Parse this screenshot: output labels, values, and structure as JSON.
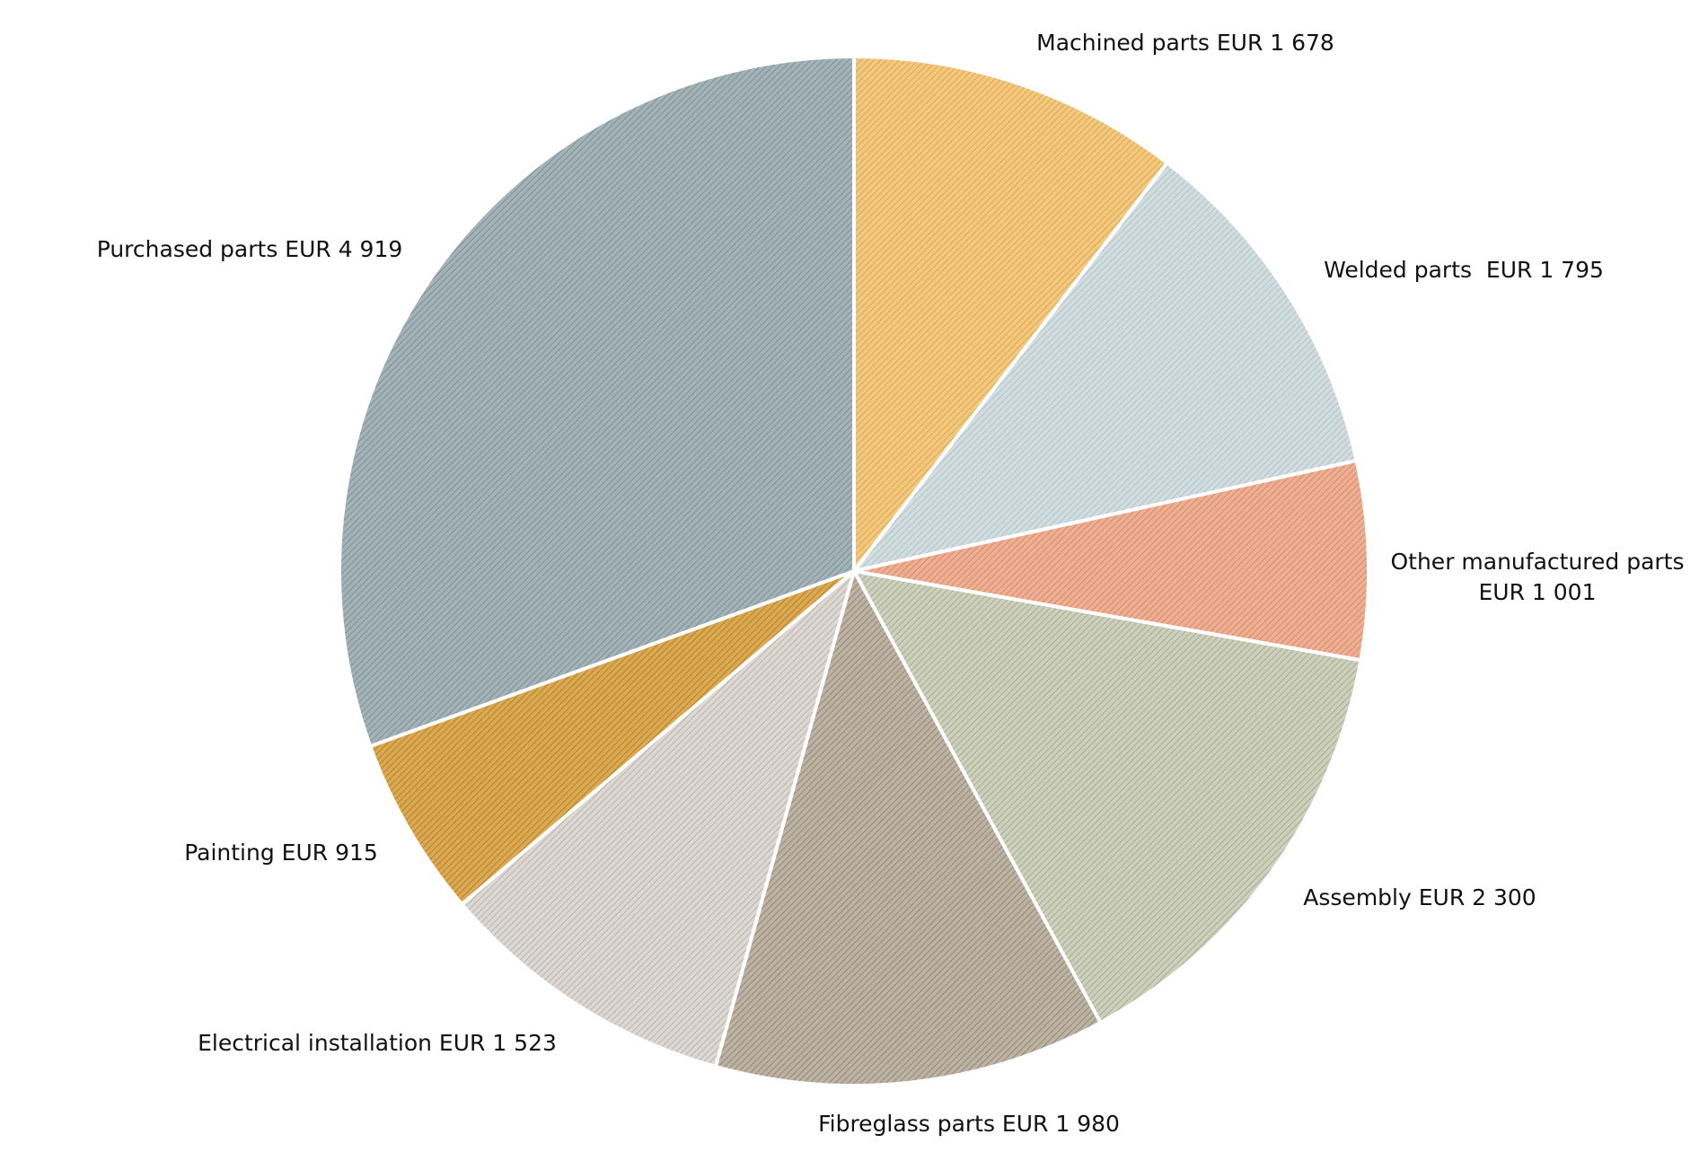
{
  "chart_data": {
    "type": "pie",
    "unit": "EUR",
    "start": "12 o'clock",
    "direction": "clockwise",
    "legend": "none (labels beside slices)",
    "slices": [
      {
        "category": "Machined parts",
        "value": 1678,
        "label": [
          "Machined parts EUR 1 678"
        ],
        "color": "#F3C981",
        "hatch": "#E0A94F"
      },
      {
        "category": "Welded parts",
        "value": 1795,
        "label": [
          "Welded parts  EUR 1 795"
        ],
        "color": "#D2DDE0",
        "hatch": "#B4C4C9"
      },
      {
        "category": "Other manufactured parts",
        "value": 1001,
        "label": [
          "Other manufactured parts",
          "EUR 1 001"
        ],
        "color": "#EDB095",
        "hatch": "#D98C68"
      },
      {
        "category": "Assembly",
        "value": 2300,
        "label": [
          "Assembly EUR 2 300"
        ],
        "color": "#CDD0BD",
        "hatch": "#A9AE93"
      },
      {
        "category": "Fibreglass parts",
        "value": 1980,
        "label": [
          "Fibreglass parts EUR 1 980"
        ],
        "color": "#BDB3A5",
        "hatch": "#978A78"
      },
      {
        "category": "Electrical installation",
        "value": 1523,
        "label": [
          "Electrical installation EUR 1 523"
        ],
        "color": "#DDD8D4",
        "hatch": "#BDB5AE"
      },
      {
        "category": "Painting",
        "value": 915,
        "label": [
          "Painting EUR 915"
        ],
        "color": "#DBA853",
        "hatch": "#B88627"
      },
      {
        "category": "Purchased parts",
        "value": 4919,
        "label": [
          "Purchased parts EUR 4 919"
        ],
        "color": "#A3B3B8",
        "hatch": "#7F9399"
      }
    ]
  }
}
